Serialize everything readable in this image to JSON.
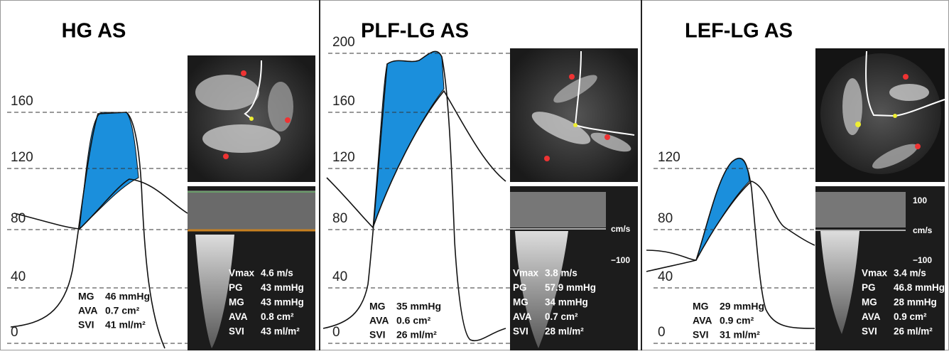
{
  "panels": [
    {
      "title": "HG AS",
      "axis_labels": [
        "160",
        "120",
        "80",
        "40",
        "0"
      ],
      "stats": [
        [
          "MG",
          "46 mmHg"
        ],
        [
          "AVA",
          "0.7 cm²"
        ],
        [
          "SVI",
          "41 ml/m²"
        ]
      ],
      "echo_stats": [
        [
          "Vmax",
          "4.6 m/s"
        ],
        [
          "PG",
          "43 mmHg"
        ],
        [
          "MG",
          "43 mmHg"
        ],
        [
          "AVA",
          "0.8 cm²"
        ],
        [
          "SVI",
          "43 ml/m²"
        ]
      ],
      "doppler_scale": []
    },
    {
      "title": "PLF-LG AS",
      "axis_labels": [
        "200",
        "160",
        "120",
        "80",
        "40",
        "0"
      ],
      "stats": [
        [
          "MG",
          "35 mmHg"
        ],
        [
          "AVA",
          "0.6 cm²"
        ],
        [
          "SVI",
          "26 ml/m²"
        ]
      ],
      "echo_stats": [
        [
          "Vmax",
          "3.8 m/s"
        ],
        [
          "PG",
          "57.9 mmHg"
        ],
        [
          "MG",
          "34 mmHg"
        ],
        [
          "AVA",
          "0.7 cm²"
        ],
        [
          "SVI",
          "28 ml/m²"
        ]
      ],
      "doppler_scale": [
        "cm/s",
        "−100"
      ]
    },
    {
      "title": "LEF-LG AS",
      "axis_labels": [
        "120",
        "80",
        "40",
        "0"
      ],
      "stats": [
        [
          "MG",
          "29 mmHg"
        ],
        [
          "AVA",
          "0.9 cm²"
        ],
        [
          "SVI",
          "31 ml/m²"
        ]
      ],
      "echo_stats": [
        [
          "Vmax",
          "3.4 m/s"
        ],
        [
          "PG",
          "46.8 mmHg"
        ],
        [
          "MG",
          "28 mmHg"
        ],
        [
          "AVA",
          "0.9 cm²"
        ],
        [
          "SVI",
          "26 ml/m²"
        ]
      ],
      "doppler_scale": [
        "100",
        "cm/s",
        "−100"
      ]
    }
  ]
}
